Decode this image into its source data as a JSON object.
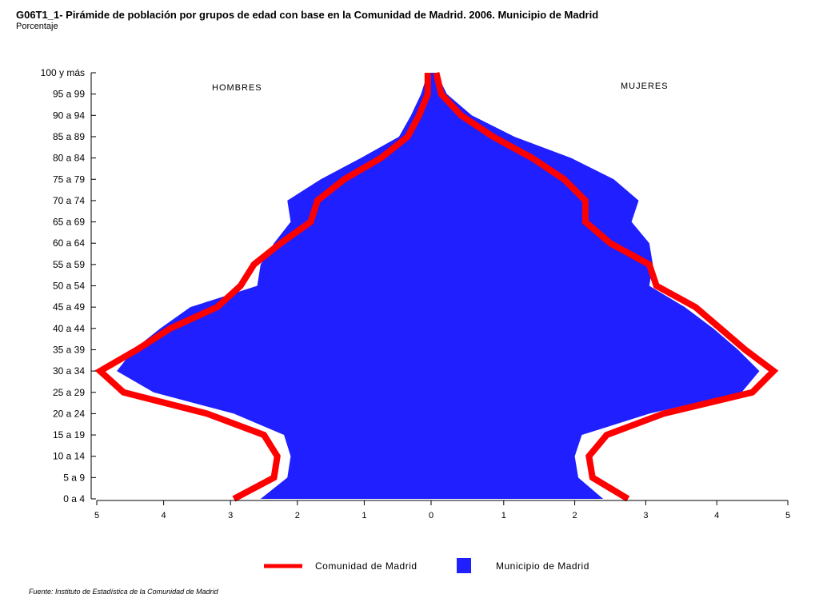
{
  "title": "G06T1_1- Pirámide de población por grupos de edad con base en la Comunidad de Madrid.  2006. Municipio de Madrid",
  "subtitle": "Porcentaje",
  "source": "Fuente: Instituto de Estadística de la Comunidad de Madrid",
  "chart_data": {
    "type": "area",
    "subtype": "population-pyramid",
    "title": "G06T1_1- Pirámide de población por grupos de edad con base en la Comunidad de Madrid.  2006. Municipio de Madrid",
    "ylabel": "",
    "xlabel": "",
    "unit": "Porcentaje",
    "categories": [
      "0 a 4",
      "5 a 9",
      "10 a 14",
      "15 a 19",
      "20 a 24",
      "25 a 29",
      "30 a 34",
      "35 a 39",
      "40 a 44",
      "45 a 49",
      "50 a 54",
      "55 a 59",
      "60 a 64",
      "65 a 69",
      "70 a 74",
      "75 a 79",
      "80 a 84",
      "85 a 89",
      "90 a 94",
      "95 a 99",
      "100 y más"
    ],
    "side_labels": {
      "left": "HOMBRES",
      "right": "MUJERES"
    },
    "xlim_left": [
      5,
      0
    ],
    "xlim_right": [
      0,
      5
    ],
    "left_ticks": [
      "5",
      "4",
      "3",
      "2",
      "1",
      "0"
    ],
    "right_ticks": [
      "0",
      "1",
      "2",
      "3",
      "4",
      "5"
    ],
    "legend_position": "bottom",
    "grid": false,
    "series": [
      {
        "name": "Municipio de Madrid",
        "style": "area",
        "color": "#1f1fff",
        "hombres": [
          2.55,
          2.15,
          2.1,
          2.2,
          2.95,
          4.15,
          4.7,
          4.45,
          4.05,
          3.6,
          2.6,
          2.55,
          2.35,
          2.1,
          2.15,
          1.65,
          1.05,
          0.48,
          0.3,
          0.15,
          0.05
        ],
        "mujeres": [
          2.4,
          2.05,
          2.0,
          2.1,
          3.05,
          4.35,
          4.6,
          4.3,
          3.95,
          3.55,
          3.05,
          3.1,
          3.05,
          2.8,
          2.9,
          2.55,
          1.95,
          1.15,
          0.55,
          0.2,
          0.05
        ]
      },
      {
        "name": "Comunidad de Madrid",
        "style": "line",
        "color": "#ff0000",
        "hombres": [
          2.95,
          2.35,
          2.3,
          2.5,
          3.35,
          4.6,
          4.95,
          4.4,
          3.9,
          3.2,
          2.85,
          2.65,
          2.25,
          1.8,
          1.7,
          1.3,
          0.75,
          0.35,
          0.18,
          0.05,
          0.05
        ],
        "mujeres": [
          2.75,
          2.25,
          2.2,
          2.45,
          3.25,
          4.5,
          4.8,
          4.4,
          4.05,
          3.7,
          3.15,
          3.05,
          2.5,
          2.15,
          2.15,
          1.85,
          1.4,
          0.85,
          0.4,
          0.12,
          0.05
        ]
      }
    ]
  },
  "legend": [
    {
      "name": "Comunidad de Madrid",
      "kind": "line",
      "color": "#ff0000"
    },
    {
      "name": "Municipio de Madrid",
      "kind": "box",
      "color": "#1f1fff"
    }
  ]
}
